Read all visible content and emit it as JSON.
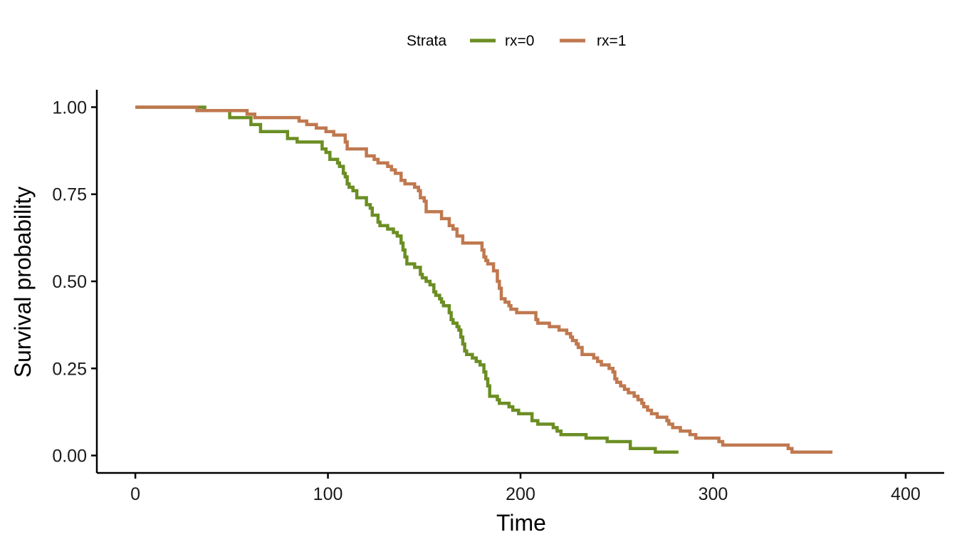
{
  "chart_data": {
    "type": "line",
    "step": true,
    "xlabel": "Time",
    "ylabel": "Survival probability",
    "xlim": [
      -20,
      420
    ],
    "ylim": [
      -0.05,
      1.05
    ],
    "x_ticks": [
      0,
      100,
      200,
      300,
      400
    ],
    "y_ticks": [
      0.0,
      0.25,
      0.5,
      0.75,
      1.0
    ],
    "x_tick_labels": [
      "0",
      "100",
      "200",
      "300",
      "400"
    ],
    "y_tick_labels": [
      "0.00",
      "0.25",
      "0.50",
      "0.75",
      "1.00"
    ],
    "grid": false,
    "legend": {
      "title": "Strata",
      "position": "top"
    },
    "series": [
      {
        "name": "rx=0",
        "color": "#6b8e23",
        "points": [
          [
            0,
            1.0
          ],
          [
            36,
            0.99
          ],
          [
            49,
            0.97
          ],
          [
            60,
            0.95
          ],
          [
            65,
            0.93
          ],
          [
            79,
            0.91
          ],
          [
            84,
            0.9
          ],
          [
            97,
            0.88
          ],
          [
            99,
            0.87
          ],
          [
            101,
            0.85
          ],
          [
            105,
            0.84
          ],
          [
            106,
            0.83
          ],
          [
            108,
            0.81
          ],
          [
            109,
            0.8
          ],
          [
            110,
            0.78
          ],
          [
            111,
            0.77
          ],
          [
            113,
            0.76
          ],
          [
            115,
            0.74
          ],
          [
            120,
            0.72
          ],
          [
            122,
            0.71
          ],
          [
            123,
            0.69
          ],
          [
            126,
            0.67
          ],
          [
            127,
            0.66
          ],
          [
            131,
            0.65
          ],
          [
            134,
            0.64
          ],
          [
            136,
            0.63
          ],
          [
            138,
            0.61
          ],
          [
            139,
            0.59
          ],
          [
            140,
            0.57
          ],
          [
            141,
            0.55
          ],
          [
            145,
            0.54
          ],
          [
            148,
            0.52
          ],
          [
            149,
            0.51
          ],
          [
            151,
            0.5
          ],
          [
            153,
            0.49
          ],
          [
            155,
            0.47
          ],
          [
            156,
            0.46
          ],
          [
            158,
            0.45
          ],
          [
            159,
            0.44
          ],
          [
            160,
            0.43
          ],
          [
            163,
            0.41
          ],
          [
            164,
            0.39
          ],
          [
            165,
            0.38
          ],
          [
            167,
            0.37
          ],
          [
            168,
            0.36
          ],
          [
            169,
            0.34
          ],
          [
            170,
            0.32
          ],
          [
            171,
            0.3
          ],
          [
            172,
            0.29
          ],
          [
            175,
            0.28
          ],
          [
            177,
            0.27
          ],
          [
            179,
            0.26
          ],
          [
            181,
            0.24
          ],
          [
            182,
            0.22
          ],
          [
            183,
            0.2
          ],
          [
            184,
            0.17
          ],
          [
            188,
            0.16
          ],
          [
            189,
            0.15
          ],
          [
            194,
            0.14
          ],
          [
            196,
            0.13
          ],
          [
            199,
            0.12
          ],
          [
            206,
            0.1
          ],
          [
            209,
            0.09
          ],
          [
            217,
            0.08
          ],
          [
            219,
            0.07
          ],
          [
            221,
            0.06
          ],
          [
            234,
            0.05
          ],
          [
            245,
            0.04
          ],
          [
            257,
            0.02
          ],
          [
            270,
            0.01
          ],
          [
            282,
            0.01
          ]
        ]
      },
      {
        "name": "rx=1",
        "color": "#c0784f",
        "points": [
          [
            0,
            1.0
          ],
          [
            32,
            0.99
          ],
          [
            58,
            0.98
          ],
          [
            62,
            0.97
          ],
          [
            85,
            0.96
          ],
          [
            89,
            0.95
          ],
          [
            94,
            0.94
          ],
          [
            99,
            0.93
          ],
          [
            103,
            0.92
          ],
          [
            109,
            0.9
          ],
          [
            110,
            0.88
          ],
          [
            120,
            0.86
          ],
          [
            124,
            0.85
          ],
          [
            126,
            0.84
          ],
          [
            131,
            0.83
          ],
          [
            133,
            0.82
          ],
          [
            135,
            0.81
          ],
          [
            138,
            0.79
          ],
          [
            140,
            0.78
          ],
          [
            145,
            0.77
          ],
          [
            147,
            0.76
          ],
          [
            148,
            0.74
          ],
          [
            150,
            0.73
          ],
          [
            151,
            0.7
          ],
          [
            159,
            0.68
          ],
          [
            163,
            0.66
          ],
          [
            165,
            0.65
          ],
          [
            167,
            0.63
          ],
          [
            170,
            0.61
          ],
          [
            180,
            0.59
          ],
          [
            181,
            0.57
          ],
          [
            182,
            0.56
          ],
          [
            183,
            0.55
          ],
          [
            186,
            0.53
          ],
          [
            188,
            0.5
          ],
          [
            189,
            0.48
          ],
          [
            190,
            0.45
          ],
          [
            192,
            0.44
          ],
          [
            194,
            0.43
          ],
          [
            195,
            0.42
          ],
          [
            198,
            0.41
          ],
          [
            208,
            0.39
          ],
          [
            209,
            0.38
          ],
          [
            215,
            0.37
          ],
          [
            220,
            0.36
          ],
          [
            224,
            0.35
          ],
          [
            226,
            0.34
          ],
          [
            227,
            0.33
          ],
          [
            229,
            0.32
          ],
          [
            230,
            0.31
          ],
          [
            232,
            0.29
          ],
          [
            238,
            0.28
          ],
          [
            240,
            0.27
          ],
          [
            242,
            0.26
          ],
          [
            246,
            0.25
          ],
          [
            248,
            0.24
          ],
          [
            249,
            0.22
          ],
          [
            250,
            0.21
          ],
          [
            252,
            0.2
          ],
          [
            254,
            0.19
          ],
          [
            256,
            0.18
          ],
          [
            259,
            0.17
          ],
          [
            261,
            0.16
          ],
          [
            263,
            0.15
          ],
          [
            264,
            0.14
          ],
          [
            266,
            0.13
          ],
          [
            268,
            0.12
          ],
          [
            271,
            0.11
          ],
          [
            276,
            0.1
          ],
          [
            277,
            0.09
          ],
          [
            279,
            0.08
          ],
          [
            283,
            0.07
          ],
          [
            288,
            0.06
          ],
          [
            291,
            0.05
          ],
          [
            303,
            0.04
          ],
          [
            305,
            0.03
          ],
          [
            339,
            0.02
          ],
          [
            341,
            0.01
          ],
          [
            362,
            0.01
          ]
        ]
      }
    ]
  }
}
